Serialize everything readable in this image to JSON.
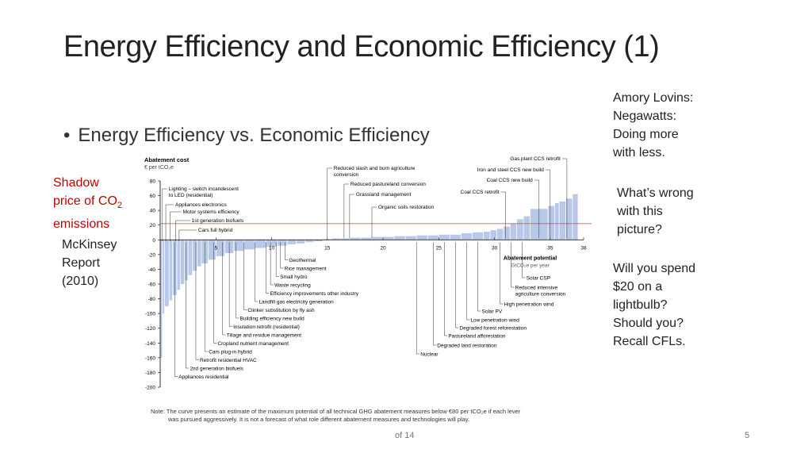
{
  "slide": {
    "title": "Energy Efficiency and Economic Efficiency (1)",
    "bullet": "Energy Efficiency vs. Economic Efficiency",
    "shadow_price": [
      "Shadow",
      "price of CO",
      "2",
      "emissions"
    ],
    "mckinsey": [
      "McKinsey",
      "Report",
      "(2010)"
    ],
    "right_notes": {
      "lovins": [
        "Amory Lovins:",
        "Negawatts:",
        "Doing more",
        "with less."
      ],
      "wrong": [
        "What’s wrong",
        "with this",
        "picture?"
      ],
      "spend": [
        "Will you spend",
        "$20 on a",
        "lightbulb?",
        "Should you?",
        "Recall CFLs."
      ]
    },
    "footer_of": "of 14",
    "page_number": "5",
    "note_lines": [
      "Note: The curve presents an estimate of the maximum potential of all technical GHG abatement measures below €80 per tCO₂e if each lever",
      "was pursued aggressively. It is not a forecast of what role different abatement measures and technologies will play."
    ]
  },
  "chart_data": {
    "type": "bar",
    "title": "Abatement cost",
    "ylabel": "€ per tCO₂e",
    "xlabel": "Abatement potential",
    "xunit": "GtCO₂e per year",
    "ylim": [
      -200,
      80
    ],
    "xlim": [
      0,
      38
    ],
    "yticks": [
      80,
      60,
      40,
      20,
      0,
      -20,
      -40,
      -60,
      -80,
      -100,
      -120,
      -140,
      -160,
      -180,
      -200
    ],
    "xticks": [
      5,
      10,
      15,
      20,
      25,
      30,
      35,
      38
    ],
    "shadow_price_level": 22,
    "colors": {
      "bar": "#b8c8e8",
      "axis": "#000000",
      "shadow_line": "#d04040"
    },
    "bars": [
      {
        "x0": 0.0,
        "x1": 0.2,
        "y": -160
      },
      {
        "x0": 0.2,
        "x1": 0.4,
        "y": -100
      },
      {
        "x0": 0.4,
        "x1": 0.8,
        "y": -90
      },
      {
        "x0": 0.8,
        "x1": 1.1,
        "y": -82
      },
      {
        "x0": 1.1,
        "x1": 1.5,
        "y": -75
      },
      {
        "x0": 1.5,
        "x1": 1.8,
        "y": -68
      },
      {
        "x0": 1.8,
        "x1": 2.2,
        "y": -60
      },
      {
        "x0": 2.2,
        "x1": 2.5,
        "y": -55
      },
      {
        "x0": 2.5,
        "x1": 2.9,
        "y": -48
      },
      {
        "x0": 2.9,
        "x1": 3.3,
        "y": -42
      },
      {
        "x0": 3.3,
        "x1": 3.7,
        "y": -36
      },
      {
        "x0": 3.7,
        "x1": 4.3,
        "y": -32
      },
      {
        "x0": 4.3,
        "x1": 5.0,
        "y": -27
      },
      {
        "x0": 5.0,
        "x1": 5.8,
        "y": -22
      },
      {
        "x0": 5.8,
        "x1": 6.6,
        "y": -18
      },
      {
        "x0": 6.6,
        "x1": 7.5,
        "y": -15
      },
      {
        "x0": 7.5,
        "x1": 8.5,
        "y": -13
      },
      {
        "x0": 8.5,
        "x1": 9.5,
        "y": -11
      },
      {
        "x0": 9.5,
        "x1": 10.5,
        "y": -9
      },
      {
        "x0": 10.5,
        "x1": 11.4,
        "y": -8
      },
      {
        "x0": 11.4,
        "x1": 12.2,
        "y": -6
      },
      {
        "x0": 12.2,
        "x1": 13.0,
        "y": -5
      },
      {
        "x0": 13.0,
        "x1": 13.8,
        "y": -3
      },
      {
        "x0": 13.8,
        "x1": 14.6,
        "y": -2
      },
      {
        "x0": 14.6,
        "x1": 15.4,
        "y": 1
      },
      {
        "x0": 15.4,
        "x1": 16.2,
        "y": 2
      },
      {
        "x0": 16.2,
        "x1": 17.0,
        "y": 2
      },
      {
        "x0": 17.0,
        "x1": 18.0,
        "y": 3
      },
      {
        "x0": 18.0,
        "x1": 19.0,
        "y": 3
      },
      {
        "x0": 19.0,
        "x1": 20.0,
        "y": 4
      },
      {
        "x0": 20.0,
        "x1": 21.0,
        "y": 4
      },
      {
        "x0": 21.0,
        "x1": 22.0,
        "y": 5
      },
      {
        "x0": 22.0,
        "x1": 23.0,
        "y": 5
      },
      {
        "x0": 23.0,
        "x1": 24.0,
        "y": 6
      },
      {
        "x0": 24.0,
        "x1": 25.0,
        "y": 6
      },
      {
        "x0": 25.0,
        "x1": 26.0,
        "y": 7
      },
      {
        "x0": 26.0,
        "x1": 27.0,
        "y": 7
      },
      {
        "x0": 27.0,
        "x1": 28.0,
        "y": 9
      },
      {
        "x0": 28.0,
        "x1": 29.0,
        "y": 10
      },
      {
        "x0": 29.0,
        "x1": 29.6,
        "y": 11
      },
      {
        "x0": 29.6,
        "x1": 30.2,
        "y": 13
      },
      {
        "x0": 30.2,
        "x1": 30.8,
        "y": 15
      },
      {
        "x0": 30.8,
        "x1": 31.4,
        "y": 18
      },
      {
        "x0": 31.4,
        "x1": 32.0,
        "y": 22
      },
      {
        "x0": 32.0,
        "x1": 32.6,
        "y": 28
      },
      {
        "x0": 32.6,
        "x1": 33.2,
        "y": 32
      },
      {
        "x0": 33.2,
        "x1": 34.8,
        "y": 42
      },
      {
        "x0": 34.8,
        "x1": 35.4,
        "y": 46
      },
      {
        "x0": 35.4,
        "x1": 35.8,
        "y": 50
      },
      {
        "x0": 35.8,
        "x1": 36.4,
        "y": 52
      },
      {
        "x0": 36.4,
        "x1": 37.0,
        "y": 56
      },
      {
        "x0": 37.0,
        "x1": 37.5,
        "y": 62
      }
    ],
    "labels_top": [
      {
        "text": "Reduced slash and burn agriculture",
        "text2": "conversion",
        "x": 15.0
      },
      {
        "text": "Reduced pastureland conversion",
        "x": 16.5
      },
      {
        "text": "Grassland management",
        "x": 17.0
      },
      {
        "text": "Organic soils restoration",
        "x": 19.0
      },
      {
        "text": "Gas plant CCS retrofit",
        "x": 36.5
      },
      {
        "text": "Iron and steel CCS new build",
        "x": 35.0
      },
      {
        "text": "Coal CCS new build",
        "x": 34.0
      },
      {
        "text": "Coal CCS retrofit",
        "x": 31.0
      }
    ],
    "labels_left": [
      {
        "text": "Lighting – switch incandescent",
        "text2": "to LED (residential)",
        "x": 0.2
      },
      {
        "text": "Appliances electronics",
        "x": 0.5
      },
      {
        "text": "Motor systems efficiency",
        "x": 0.9
      },
      {
        "text": "1st generation biofuels",
        "x": 1.4
      },
      {
        "text": "Cars full hybrid",
        "x": 1.7
      }
    ],
    "labels_bottom_left": [
      {
        "text": "Geothermal",
        "x": 11.2
      },
      {
        "text": "Rice management",
        "x": 10.8
      },
      {
        "text": "Small hydro",
        "x": 10.4
      },
      {
        "text": "Waste recycling",
        "x": 9.9
      },
      {
        "text": "Efficiency improvements other industry",
        "x": 9.5
      },
      {
        "text": "Landfill gas electricity generation",
        "x": 8.5
      },
      {
        "text": "Clinker substitution by fly ash",
        "x": 7.5
      },
      {
        "text": "Building efficiency new build",
        "x": 6.8
      },
      {
        "text": "Insulation retrofit (residential)",
        "x": 6.2
      },
      {
        "text": "Tillage and residue management",
        "x": 5.6
      },
      {
        "text": "Cropland nutrient management",
        "x": 4.8
      },
      {
        "text": "Cars plug-in hybrid",
        "x": 4.0
      },
      {
        "text": "Retrofit residential HVAC",
        "x": 3.2
      },
      {
        "text": "2nd generation biofuels",
        "x": 2.3
      },
      {
        "text": "Appliances residential",
        "x": 1.3
      }
    ],
    "labels_bottom_right": [
      {
        "text": "Solar CSP",
        "x": 32.5
      },
      {
        "text": "Reduced intensive",
        "text2": "agriculture conversion",
        "x": 31.5
      },
      {
        "text": "High penetration wind",
        "x": 30.5
      },
      {
        "text": "Solar PV",
        "x": 28.5
      },
      {
        "text": "Low penetration wind",
        "x": 27.5
      },
      {
        "text": "Degraded forest reforestation",
        "x": 26.5
      },
      {
        "text": "Pastureland afforestation",
        "x": 25.5
      },
      {
        "text": "Degraded land restoration",
        "x": 24.5
      },
      {
        "text": "Nuclear",
        "x": 23.0
      }
    ]
  }
}
